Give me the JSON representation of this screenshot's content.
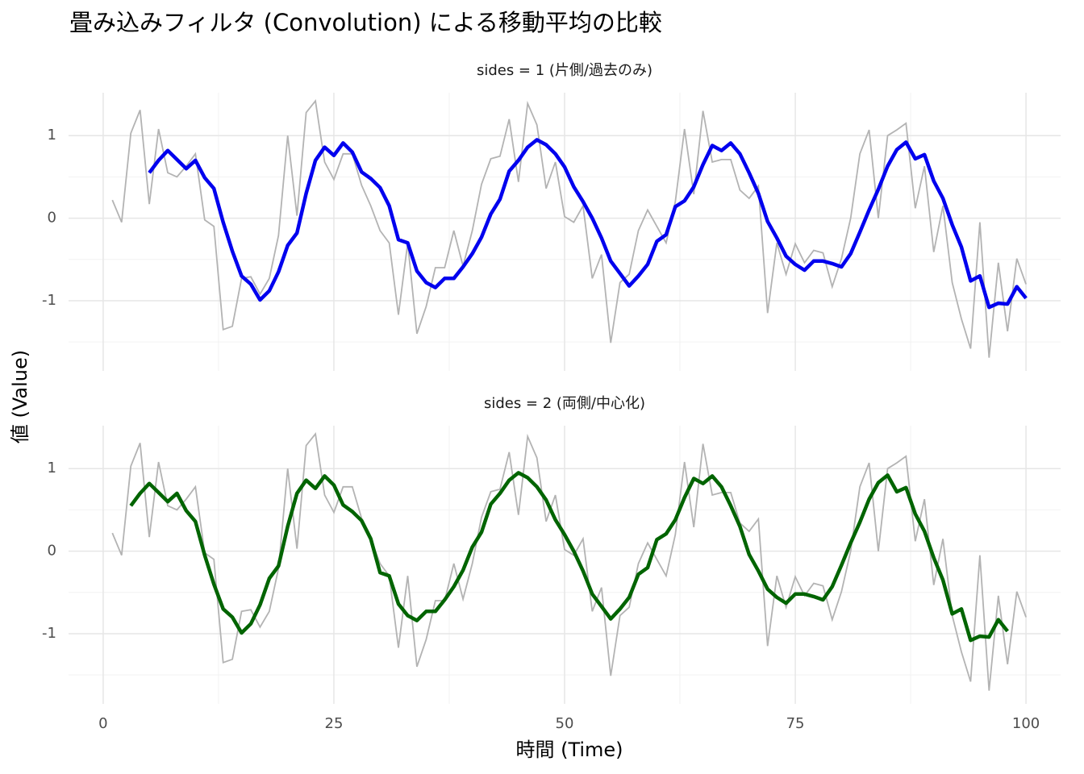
{
  "chart_data": {
    "type": "line",
    "title": "畳み込みフィルタ (Convolution) による移動平均の比較",
    "x_label": "時間 (Time)",
    "y_label": "値 (Value)",
    "x": [
      1,
      2,
      3,
      4,
      5,
      6,
      7,
      8,
      9,
      10,
      11,
      12,
      13,
      14,
      15,
      16,
      17,
      18,
      19,
      20,
      21,
      22,
      23,
      24,
      25,
      26,
      27,
      28,
      29,
      30,
      31,
      32,
      33,
      34,
      35,
      36,
      37,
      38,
      39,
      40,
      41,
      42,
      43,
      44,
      45,
      46,
      47,
      48,
      49,
      50,
      51,
      52,
      53,
      54,
      55,
      56,
      57,
      58,
      59,
      60,
      61,
      62,
      63,
      64,
      65,
      66,
      67,
      68,
      69,
      70,
      71,
      72,
      73,
      74,
      75,
      76,
      77,
      78,
      79,
      80,
      81,
      82,
      83,
      84,
      85,
      86,
      87,
      88,
      89,
      90,
      91,
      92,
      93,
      94,
      95,
      96,
      97,
      98,
      99,
      100
    ],
    "xlim": [
      -3.75,
      103.75
    ],
    "xticks": [
      0,
      25,
      50,
      75,
      100
    ],
    "minor_xticks": [
      12.5,
      37.5,
      62.5,
      87.5
    ],
    "ylim": [
      -1.85,
      1.52
    ],
    "yticks": [
      -1,
      0,
      1
    ],
    "minor_yticks": [
      -1.5,
      -0.5,
      0.5
    ],
    "grid": true,
    "raw_color": "#b3b3b3",
    "raw": [
      0.22,
      -0.05,
      1.03,
      1.31,
      0.17,
      1.08,
      0.55,
      0.5,
      0.63,
      0.78,
      -0.02,
      -0.1,
      -1.35,
      -1.31,
      -0.73,
      -0.71,
      -0.92,
      -0.73,
      -0.21,
      1.0,
      0.03,
      1.28,
      1.42,
      0.68,
      0.47,
      0.78,
      0.78,
      0.4,
      0.15,
      -0.15,
      -0.3,
      -1.17,
      -0.3,
      -1.4,
      -1.07,
      -0.6,
      -0.6,
      -0.15,
      -0.58,
      -0.15,
      0.41,
      0.72,
      0.75,
      1.2,
      0.44,
      1.39,
      1.13,
      0.36,
      0.68,
      0.02,
      -0.05,
      0.15,
      -0.73,
      -0.44,
      -1.51,
      -0.78,
      -0.68,
      -0.15,
      0.1,
      -0.1,
      -0.3,
      0.2,
      1.08,
      0.29,
      1.3,
      0.68,
      0.71,
      0.71,
      0.34,
      0.24,
      0.39,
      -1.15,
      -0.3,
      -0.68,
      -0.31,
      -0.54,
      -0.39,
      -0.42,
      -0.83,
      -0.49,
      0,
      0.78,
      1.07,
      0,
      1.0,
      1.07,
      1.15,
      0.12,
      0.63,
      -0.41,
      0.15,
      -0.78,
      -1.22,
      -1.58,
      -0.05,
      -1.69,
      -0.54,
      -1.37,
      -0.49,
      -0.8
    ],
    "panels": [
      {
        "title": "sides = 1 (片側/過去のみ)",
        "color": "#0000ee",
        "values": [
          null,
          null,
          null,
          null,
          0.55,
          0.7,
          0.82,
          0.71,
          0.6,
          0.7,
          0.49,
          0.36,
          -0.05,
          -0.4,
          -0.7,
          -0.8,
          -0.99,
          -0.88,
          -0.65,
          -0.33,
          -0.18,
          0.3,
          0.7,
          0.86,
          0.76,
          0.91,
          0.8,
          0.56,
          0.48,
          0.37,
          0.15,
          -0.26,
          -0.3,
          -0.64,
          -0.78,
          -0.84,
          -0.73,
          -0.73,
          -0.59,
          -0.43,
          -0.23,
          0.05,
          0.23,
          0.57,
          0.7,
          0.86,
          0.95,
          0.89,
          0.78,
          0.62,
          0.38,
          0.2,
          0.0,
          -0.24,
          -0.52,
          -0.67,
          -0.82,
          -0.7,
          -0.56,
          -0.28,
          -0.2,
          0.14,
          0.21,
          0.38,
          0.65,
          0.88,
          0.82,
          0.91,
          0.78,
          0.55,
          0.3,
          -0.04,
          -0.24,
          -0.46,
          -0.56,
          -0.63,
          -0.52,
          -0.52,
          -0.55,
          -0.59,
          -0.43,
          -0.17,
          0.1,
          0.35,
          0.63,
          0.83,
          0.92,
          0.72,
          0.77,
          0.45,
          0.24,
          -0.08,
          -0.35,
          -0.76,
          -0.7,
          -1.08,
          -1.03,
          -1.04,
          -0.83,
          -0.97
        ]
      },
      {
        "title": "sides = 2 (両側/中心化)",
        "color": "#006400",
        "values": [
          null,
          null,
          0.55,
          0.7,
          0.82,
          0.71,
          0.6,
          0.7,
          0.49,
          0.36,
          -0.05,
          -0.4,
          -0.7,
          -0.8,
          -0.99,
          -0.88,
          -0.65,
          -0.33,
          -0.18,
          0.3,
          0.7,
          0.86,
          0.76,
          0.91,
          0.8,
          0.56,
          0.48,
          0.37,
          0.15,
          -0.26,
          -0.3,
          -0.64,
          -0.78,
          -0.84,
          -0.73,
          -0.73,
          -0.59,
          -0.43,
          -0.23,
          0.05,
          0.23,
          0.57,
          0.7,
          0.86,
          0.95,
          0.89,
          0.78,
          0.62,
          0.38,
          0.2,
          0.0,
          -0.24,
          -0.52,
          -0.67,
          -0.82,
          -0.7,
          -0.56,
          -0.28,
          -0.2,
          0.14,
          0.21,
          0.38,
          0.65,
          0.88,
          0.82,
          0.91,
          0.78,
          0.55,
          0.3,
          -0.04,
          -0.24,
          -0.46,
          -0.56,
          -0.63,
          -0.52,
          -0.52,
          -0.55,
          -0.59,
          -0.43,
          -0.17,
          0.1,
          0.35,
          0.63,
          0.83,
          0.92,
          0.72,
          0.77,
          0.45,
          0.24,
          -0.08,
          -0.35,
          -0.76,
          -0.7,
          -1.08,
          -1.03,
          -1.04,
          -0.83,
          -0.97,
          null,
          null
        ]
      }
    ]
  }
}
